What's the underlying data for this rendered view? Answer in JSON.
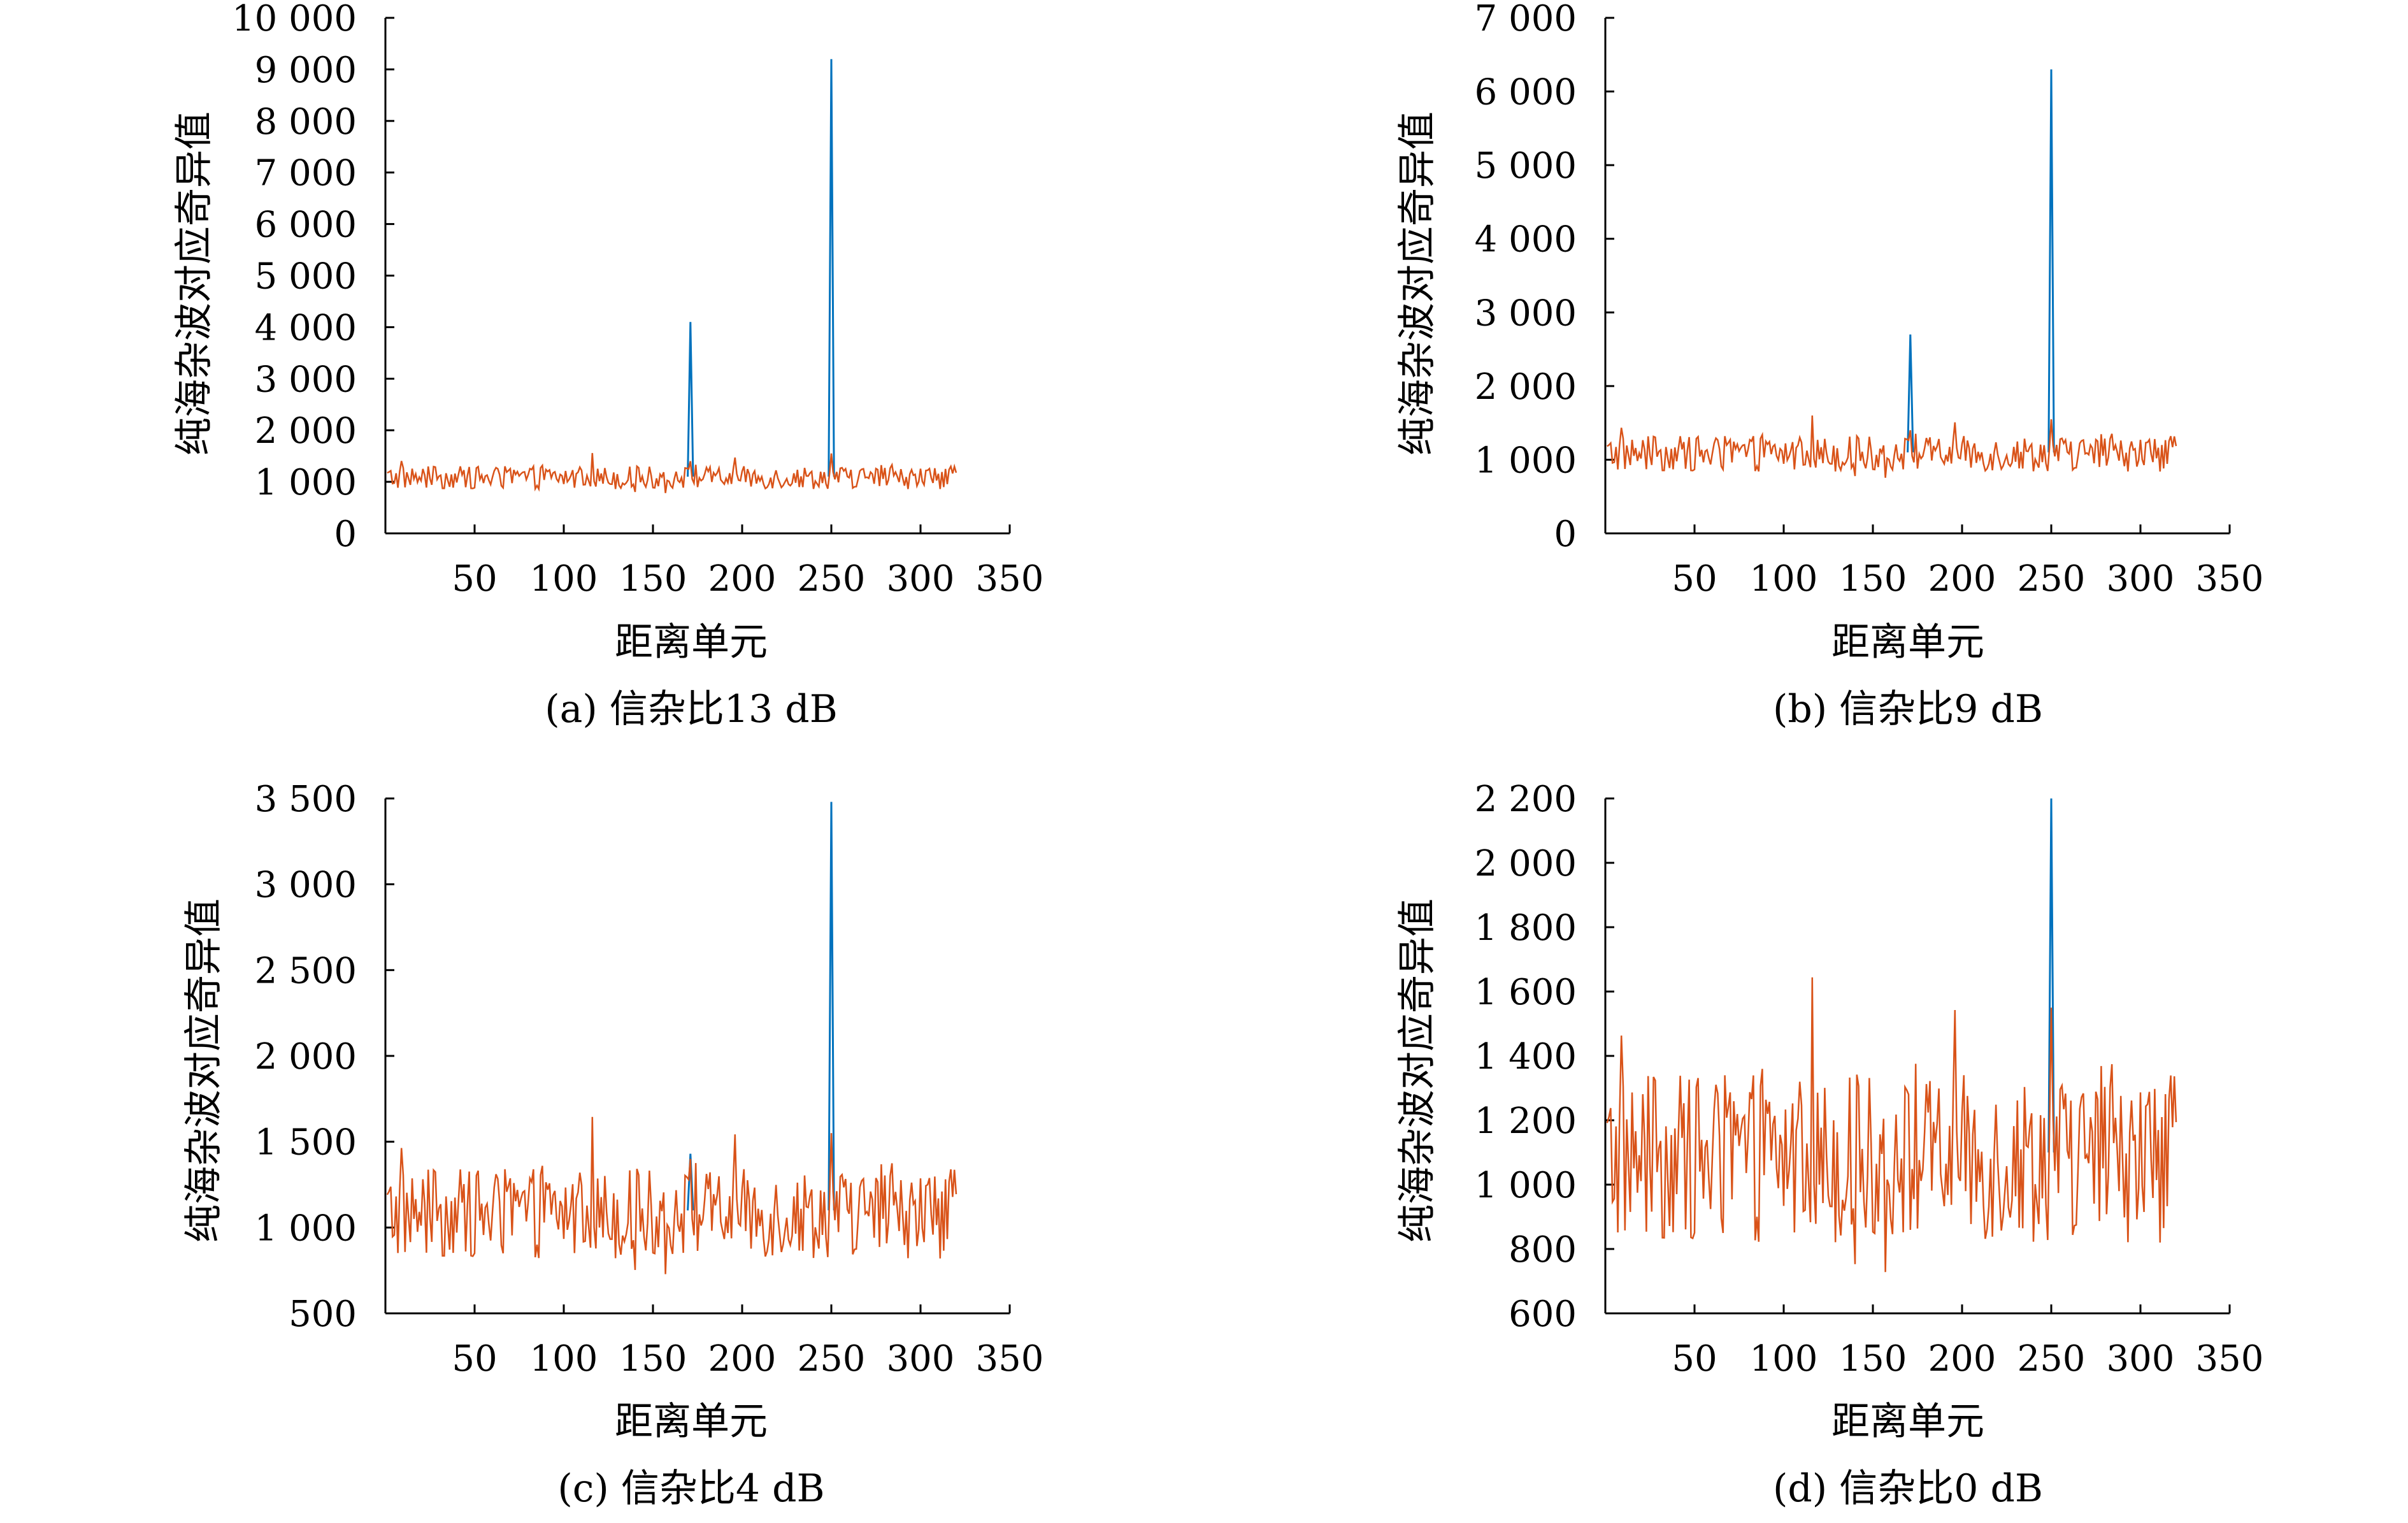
{
  "panels": [
    {
      "caption": "(a) 信杂比13 dB",
      "ylabel": "纯海杂波对应奇异值",
      "xlabel": "距离单元",
      "ylim": [
        0,
        10000
      ],
      "yticks": [
        0,
        1000,
        2000,
        3000,
        4000,
        5000,
        6000,
        7000,
        8000,
        9000,
        10000
      ],
      "ytick_labels": [
        "0",
        "1 000",
        "2 000",
        "3 000",
        "4 000",
        "5 000",
        "6 000",
        "7 000",
        "8 000",
        "9 000",
        "10 000"
      ],
      "xlim": [
        0,
        350
      ],
      "xticks": [
        50,
        100,
        150,
        200,
        250,
        300,
        350
      ],
      "xtick_labels": [
        "50",
        "100",
        "150",
        "200",
        "250",
        "300",
        "350"
      ],
      "peaks": [
        {
          "x": 171,
          "y": 4100
        },
        {
          "x": 250,
          "y": 9200
        }
      ]
    },
    {
      "caption": "(b) 信杂比9 dB",
      "ylabel": "纯海杂波对应奇异值",
      "xlabel": "距离单元",
      "ylim": [
        0,
        7000
      ],
      "yticks": [
        0,
        1000,
        2000,
        3000,
        4000,
        5000,
        6000,
        7000
      ],
      "ytick_labels": [
        "0",
        "1 000",
        "2 000",
        "3 000",
        "4 000",
        "5 000",
        "6 000",
        "7 000"
      ],
      "xlim": [
        0,
        350
      ],
      "xticks": [
        50,
        100,
        150,
        200,
        250,
        300,
        350
      ],
      "xtick_labels": [
        "50",
        "100",
        "150",
        "200",
        "250",
        "300",
        "350"
      ],
      "peaks": [
        {
          "x": 171,
          "y": 2700
        },
        {
          "x": 250,
          "y": 6300
        }
      ]
    },
    {
      "caption": "(c) 信杂比4 dB",
      "ylabel": "纯海杂波对应奇异值",
      "xlabel": "距离单元",
      "ylim": [
        500,
        3500
      ],
      "yticks": [
        500,
        1000,
        1500,
        2000,
        2500,
        3000,
        3500
      ],
      "ytick_labels": [
        "500",
        "1 000",
        "1 500",
        "2 000",
        "2 500",
        "3 000",
        "3 500"
      ],
      "xlim": [
        0,
        350
      ],
      "xticks": [
        50,
        100,
        150,
        200,
        250,
        300,
        350
      ],
      "xtick_labels": [
        "50",
        "100",
        "150",
        "200",
        "250",
        "300",
        "350"
      ],
      "peaks": [
        {
          "x": 171,
          "y": 1430
        },
        {
          "x": 250,
          "y": 3480
        }
      ]
    },
    {
      "caption": "(d) 信杂比0 dB",
      "ylabel": "纯海杂波对应奇异值",
      "xlabel": "距离单元",
      "ylim": [
        600,
        2200
      ],
      "yticks": [
        600,
        800,
        1000,
        1200,
        1400,
        1600,
        1800,
        2000,
        2200
      ],
      "ytick_labels": [
        "600",
        "800",
        "1 000",
        "1 200",
        "1 400",
        "1 600",
        "1 800",
        "2 000",
        "2 200"
      ],
      "xlim": [
        0,
        350
      ],
      "xticks": [
        50,
        100,
        150,
        200,
        250,
        300,
        350
      ],
      "xtick_labels": [
        "50",
        "100",
        "150",
        "200",
        "250",
        "300",
        "350"
      ],
      "peaks": [
        {
          "x": 250,
          "y": 2200
        }
      ]
    }
  ],
  "chart_data": [
    {
      "type": "line",
      "title": "(a) 信杂比13 dB",
      "xlabel": "距离单元",
      "ylabel": "纯海杂波对应奇异值",
      "xlim": [
        0,
        350
      ],
      "ylim": [
        0,
        10000
      ],
      "series": [
        {
          "color": "#0072BD",
          "points": [
            [
              171,
              4100
            ],
            [
              250,
              9200
            ]
          ]
        },
        {
          "color": "#D95319",
          "x_range": [
            1,
            320
          ],
          "typical_range": [
            700,
            1700
          ]
        }
      ]
    },
    {
      "type": "line",
      "title": "(b) 信杂比9 dB",
      "xlabel": "距离单元",
      "ylabel": "纯海杂波对应奇异值",
      "xlim": [
        0,
        350
      ],
      "ylim": [
        0,
        7000
      ],
      "series": [
        {
          "color": "#0072BD",
          "points": [
            [
              171,
              2700
            ],
            [
              250,
              6300
            ]
          ]
        },
        {
          "color": "#D95319",
          "x_range": [
            1,
            320
          ],
          "typical_range": [
            700,
            1750
          ]
        }
      ]
    },
    {
      "type": "line",
      "title": "(c) 信杂比4 dB",
      "xlabel": "距离单元",
      "ylabel": "纯海杂波对应奇异值",
      "xlim": [
        0,
        350
      ],
      "ylim": [
        500,
        3500
      ],
      "series": [
        {
          "color": "#0072BD",
          "points": [
            [
              171,
              1430
            ],
            [
              250,
              3480
            ]
          ]
        },
        {
          "color": "#D95319",
          "x_range": [
            1,
            320
          ],
          "typical_range": [
            700,
            1770
          ]
        }
      ]
    },
    {
      "type": "line",
      "title": "(d) 信杂比0 dB",
      "xlabel": "距离单元",
      "ylabel": "纯海杂波对应奇异值",
      "xlim": [
        0,
        350
      ],
      "ylim": [
        600,
        2200
      ],
      "series": [
        {
          "color": "#0072BD",
          "points": [
            [
              250,
              2200
            ]
          ]
        },
        {
          "color": "#D95319",
          "x_range": [
            1,
            320
          ],
          "typical_range": [
            700,
            1770
          ]
        }
      ]
    }
  ],
  "colors": {
    "signal": "#0072BD",
    "clutter": "#D95319",
    "axis": "#000000"
  }
}
